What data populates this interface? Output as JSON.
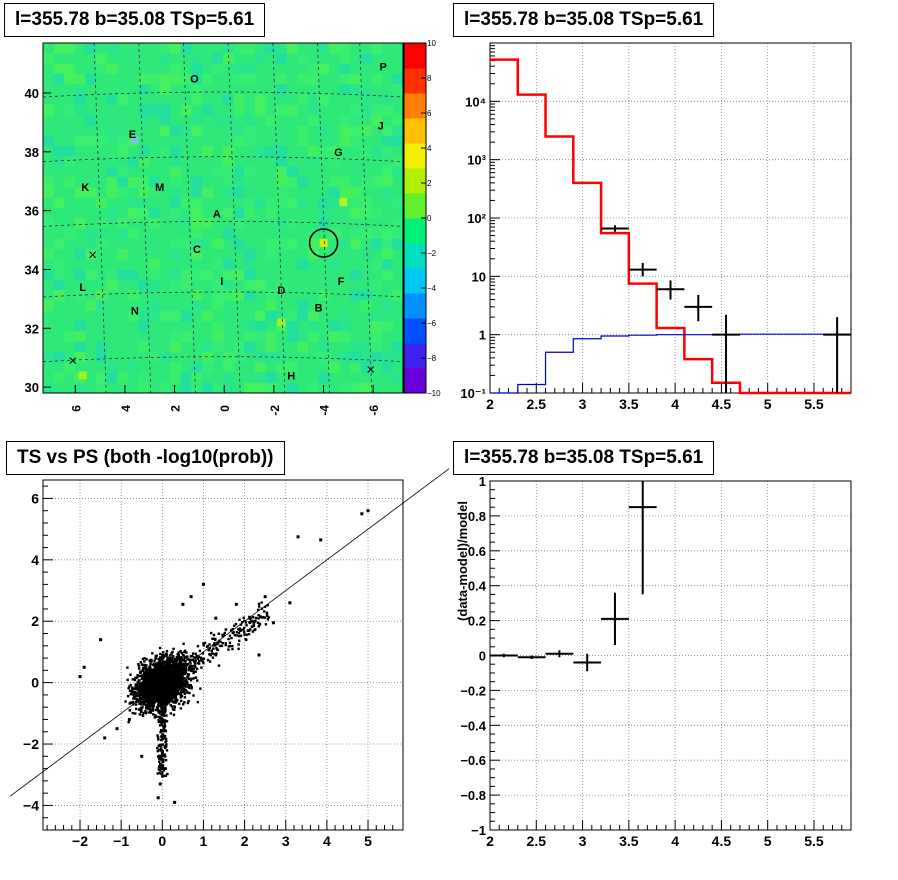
{
  "colors": {
    "model": "#ff0000",
    "background_model": "#0000cc",
    "data": "#000000",
    "grid": "#808080",
    "circle": "#000000"
  },
  "chart_data": [
    {
      "type": "heatmap",
      "title": "l=355.78 b=35.08 TSp=5.61",
      "x_tick_labels": [
        "6",
        "4",
        "2",
        "0",
        "-2",
        "-4",
        "-6"
      ],
      "y_tick_labels": [
        "30",
        "32",
        "34",
        "36",
        "38",
        "40"
      ],
      "xlim": [
        7.3,
        -7.2
      ],
      "ylim": [
        29.8,
        41.7
      ],
      "colorbar_range": [
        -10,
        10
      ],
      "colorbar_tick_labels": [
        "-10",
        "-8",
        "-6",
        "-4",
        "-2",
        "0",
        "2",
        "4",
        "6",
        "8",
        "10"
      ],
      "region_labels": [
        {
          "text": "O",
          "x": 1.2,
          "y": 40.5
        },
        {
          "text": "P",
          "x": -6.4,
          "y": 40.9
        },
        {
          "text": "E",
          "x": 3.7,
          "y": 38.6
        },
        {
          "text": "J",
          "x": -6.3,
          "y": 38.9
        },
        {
          "text": "G",
          "x": -4.6,
          "y": 38.0
        },
        {
          "text": "K",
          "x": 5.6,
          "y": 36.8
        },
        {
          "text": "M",
          "x": 2.6,
          "y": 36.8
        },
        {
          "text": "A",
          "x": 0.3,
          "y": 35.9
        },
        {
          "text": "C",
          "x": 1.1,
          "y": 34.7
        },
        {
          "text": "F",
          "x": -4.7,
          "y": 33.6
        },
        {
          "text": "L",
          "x": 5.7,
          "y": 33.4
        },
        {
          "text": "I",
          "x": 0.1,
          "y": 33.6
        },
        {
          "text": "D",
          "x": -2.3,
          "y": 33.3
        },
        {
          "text": "B",
          "x": -3.8,
          "y": 32.7
        },
        {
          "text": "N",
          "x": 3.6,
          "y": 32.6
        },
        {
          "text": "H",
          "x": -2.7,
          "y": 30.4
        }
      ],
      "source_circle": {
        "x": -4.0,
        "y": 34.9
      }
    },
    {
      "type": "line",
      "title": "l=355.78 b=35.08 TSp=5.61",
      "x_tick_labels": [
        "2",
        "2.5",
        "3",
        "3.5",
        "4",
        "4.5",
        "5",
        "5.5"
      ],
      "y_tick_labels": [
        "10⁻¹",
        "1",
        "10",
        "10²",
        "10³",
        "10⁴"
      ],
      "xlim": [
        2,
        5.9
      ],
      "ylim": [
        0.1,
        100000
      ],
      "log_y": true,
      "grid": true,
      "series": [
        {
          "style": "step",
          "color": "#ff0000",
          "edges": [
            2.0,
            2.3,
            2.6,
            2.9,
            3.2,
            3.5,
            3.8,
            4.1,
            4.4,
            4.7,
            5.0,
            5.3,
            5.6,
            5.9
          ],
          "values": [
            52000,
            13000,
            2500,
            400,
            55,
            7.5,
            1.3,
            0.38,
            0.15,
            0.1,
            0.1,
            0.1,
            0.1
          ]
        },
        {
          "style": "step",
          "color": "#0000cc",
          "edges": [
            2.0,
            2.3,
            2.6,
            2.9,
            3.2,
            3.5,
            3.8,
            4.1,
            4.4,
            4.7,
            5.0,
            5.3,
            5.6,
            5.9
          ],
          "values": [
            0.1,
            0.14,
            0.5,
            0.85,
            0.95,
            0.98,
            1.0,
            1.0,
            1.0,
            1.02,
            1.02,
            1.02,
            1.02
          ]
        },
        {
          "style": "errorbars",
          "color": "#000000",
          "points": [
            {
              "x": 3.35,
              "y": 66,
              "xerr": 0.15,
              "ylo": 58,
              "yhi": 75
            },
            {
              "x": 3.65,
              "y": 13,
              "xerr": 0.15,
              "ylo": 10,
              "yhi": 17
            },
            {
              "x": 3.95,
              "y": 6,
              "xerr": 0.15,
              "ylo": 4,
              "yhi": 8.5
            },
            {
              "x": 4.25,
              "y": 3,
              "xerr": 0.15,
              "ylo": 1.7,
              "yhi": 4.8
            },
            {
              "x": 4.55,
              "y": 1,
              "xerr": 0.15,
              "ylo": 0.1,
              "yhi": 2.2
            },
            {
              "x": 5.75,
              "y": 1,
              "xerr": 0.15,
              "ylo": 0.1,
              "yhi": 2.0
            }
          ]
        }
      ]
    },
    {
      "type": "scatter",
      "title": "TS vs PS (both -log10(prob))",
      "x_tick_labels": [
        "−2",
        "−1",
        "0",
        "1",
        "2",
        "3",
        "4",
        "5"
      ],
      "y_tick_labels": [
        "−4",
        "−2",
        "0",
        "2",
        "4",
        "6"
      ],
      "xlim": [
        -2.9,
        5.85
      ],
      "ylim": [
        -4.8,
        6.6
      ],
      "grid": true,
      "reference_line": {
        "slope": 1,
        "intercept": 0
      },
      "outliers": [
        {
          "x": 5.0,
          "y": 5.6
        },
        {
          "x": 4.85,
          "y": 5.5
        },
        {
          "x": 3.85,
          "y": 4.65
        },
        {
          "x": 3.3,
          "y": 4.75
        },
        {
          "x": 2.5,
          "y": 2.8
        },
        {
          "x": 1.0,
          "y": 3.2
        },
        {
          "x": 0.5,
          "y": 2.55
        },
        {
          "x": -1.5,
          "y": 1.4
        },
        {
          "x": -1.9,
          "y": 0.5
        },
        {
          "x": -2.0,
          "y": 0.2
        },
        {
          "x": 0.3,
          "y": -3.9
        },
        {
          "x": -0.1,
          "y": -3.75
        },
        {
          "x": -0.5,
          "y": -2.4
        },
        {
          "x": -1.4,
          "y": -1.8
        },
        {
          "x": 2.7,
          "y": 1.95
        },
        {
          "x": 3.1,
          "y": 2.6
        },
        {
          "x": 2.35,
          "y": 0.9
        },
        {
          "x": 1.8,
          "y": 2.55
        },
        {
          "x": -1.1,
          "y": -1.5
        },
        {
          "x": -0.05,
          "y": -3.3
        },
        {
          "x": 0.7,
          "y": 2.8
        },
        {
          "x": 1.9,
          "y": 1.7
        },
        {
          "x": -0.8,
          "y": -1.2
        },
        {
          "x": 1.3,
          "y": 2.1
        }
      ]
    },
    {
      "type": "line",
      "title": "l=355.78 b=35.08 TSp=5.61",
      "ylabel": "(data-model)/model",
      "x_tick_labels": [
        "2",
        "2.5",
        "3",
        "3.5",
        "4",
        "4.5",
        "5",
        "5.5"
      ],
      "y_tick_labels": [
        "−1",
        "−0.8",
        "−0.6",
        "−0.4",
        "−0.2",
        "0",
        "0.2",
        "0.4",
        "0.6",
        "0.8",
        "1"
      ],
      "xlim": [
        2,
        5.9
      ],
      "ylim": [
        -1,
        1
      ],
      "grid": true,
      "series": [
        {
          "style": "errorbars",
          "color": "#000000",
          "points": [
            {
              "x": 2.15,
              "y": 0.0,
              "xerr": 0.15,
              "ylo": -0.01,
              "yhi": 0.01
            },
            {
              "x": 2.45,
              "y": -0.01,
              "xerr": 0.15,
              "ylo": -0.02,
              "yhi": 0.0
            },
            {
              "x": 2.75,
              "y": 0.01,
              "xerr": 0.15,
              "ylo": -0.01,
              "yhi": 0.03
            },
            {
              "x": 3.05,
              "y": -0.04,
              "xerr": 0.15,
              "ylo": -0.09,
              "yhi": 0.01
            },
            {
              "x": 3.35,
              "y": 0.21,
              "xerr": 0.15,
              "ylo": 0.06,
              "yhi": 0.36
            },
            {
              "x": 3.65,
              "y": 0.85,
              "xerr": 0.15,
              "ylo": 0.35,
              "yhi": 1.0
            }
          ]
        }
      ]
    }
  ]
}
